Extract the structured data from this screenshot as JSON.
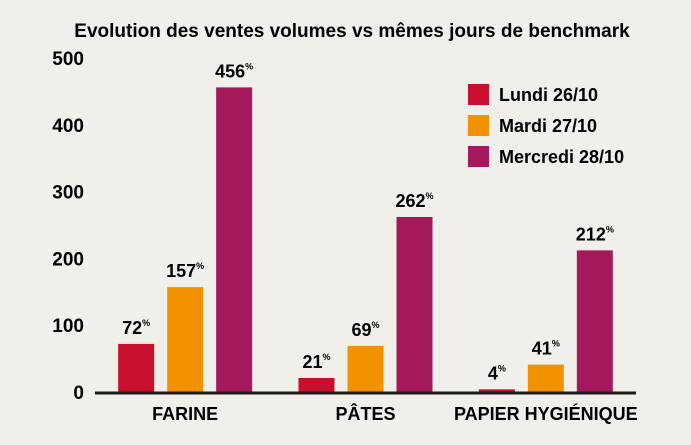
{
  "chart_data": {
    "type": "bar",
    "title": "Evolution des ventes volumes vs mêmes jours de benchmark",
    "categories": [
      "FARINE",
      "PÂTES",
      "PAPIER HYGIÉNIQUE"
    ],
    "series": [
      {
        "name": "Lundi 26/10",
        "color": "#c8102e",
        "values": [
          72,
          21,
          4
        ]
      },
      {
        "name": "Mardi 27/10",
        "color": "#f39200",
        "values": [
          157,
          69,
          41
        ]
      },
      {
        "name": "Mercredi 28/10",
        "color": "#a3195b",
        "values": [
          456,
          262,
          212
        ]
      }
    ],
    "value_suffix": "%",
    "ylim": [
      0,
      500
    ],
    "yticks": [
      0,
      100,
      200,
      300,
      400,
      500
    ],
    "legend": "top-right",
    "grid": false
  }
}
